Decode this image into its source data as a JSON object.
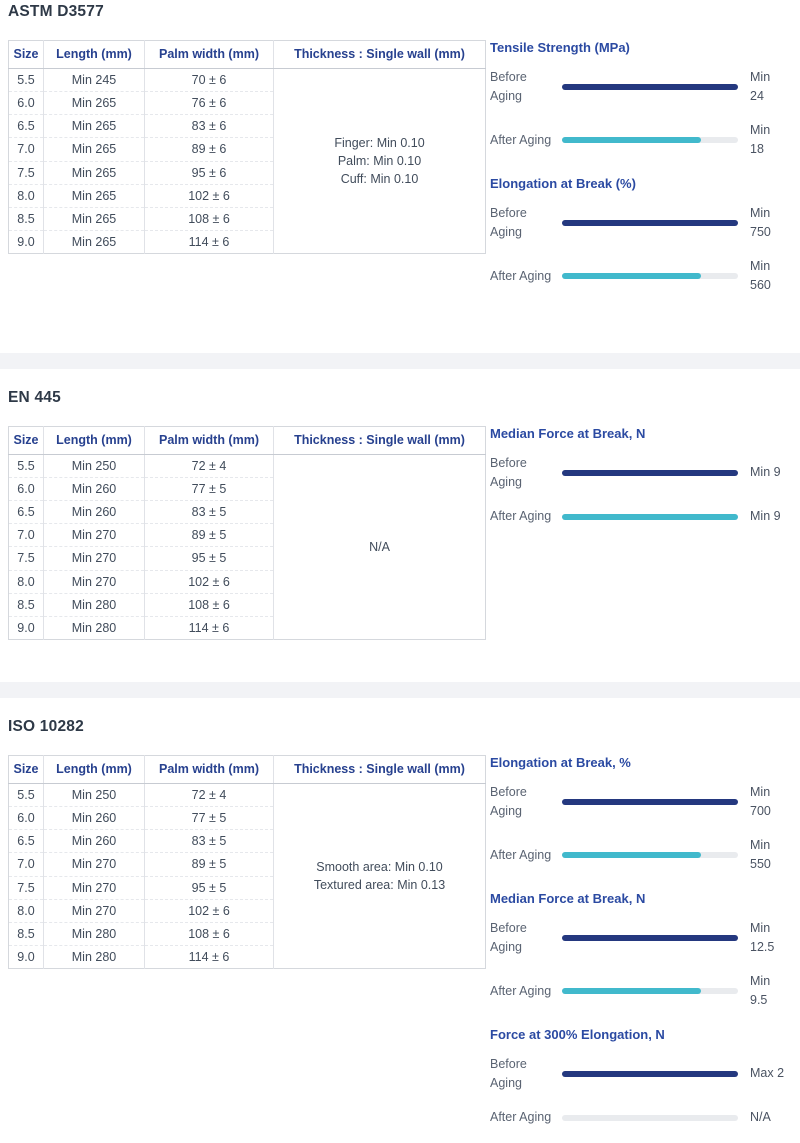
{
  "colors": {
    "navy": "#24387f",
    "teal": "#41b9cc",
    "none": "#e9ebee",
    "bar_track": "#e9ebee",
    "group_title_text": "#2b4aa2",
    "table_header_text": "#27418f",
    "section_title_text": "#2e3947",
    "divider": "#f2f3f6"
  },
  "sections": [
    {
      "id": "astm-d3577",
      "title": "ASTM D3577",
      "table": {
        "headers": [
          "Size",
          "Length (mm)",
          "Palm width (mm)",
          "Thickness : Single wall (mm)"
        ],
        "rows": [
          [
            "5.5",
            "Min 245",
            "70 ± 6"
          ],
          [
            "6.0",
            "Min 265",
            "76 ± 6"
          ],
          [
            "6.5",
            "Min 265",
            "83 ± 6"
          ],
          [
            "7.0",
            "Min 265",
            "89 ± 6"
          ],
          [
            "7.5",
            "Min 265",
            "95 ± 6"
          ],
          [
            "8.0",
            "Min 265",
            "102 ± 6"
          ],
          [
            "8.5",
            "Min 265",
            "108 ± 6"
          ],
          [
            "9.0",
            "Min 265",
            "114 ± 6"
          ]
        ],
        "thickness_lines": [
          "Finger: Min 0.10",
          "Palm: Min 0.10",
          "Cuff: Min 0.10"
        ]
      },
      "metrics": [
        {
          "title": "Tensile Strength (MPa)",
          "rows": [
            {
              "label": [
                "Before",
                "Aging"
              ],
              "bar_color": "navy",
              "fill_pct": 100,
              "value": [
                "Min",
                "24"
              ]
            },
            {
              "label": [
                "After Aging"
              ],
              "bar_color": "teal",
              "fill_pct": 79,
              "value": [
                "Min",
                "18"
              ]
            }
          ]
        },
        {
          "title": "Elongation at Break (%)",
          "rows": [
            {
              "label": [
                "Before",
                "Aging"
              ],
              "bar_color": "navy",
              "fill_pct": 100,
              "value": [
                "Min",
                "750"
              ]
            },
            {
              "label": [
                "After Aging"
              ],
              "bar_color": "teal",
              "fill_pct": 79,
              "value": [
                "Min",
                "560"
              ]
            }
          ]
        }
      ]
    },
    {
      "id": "en-445",
      "title": "EN 445",
      "table": {
        "headers": [
          "Size",
          "Length (mm)",
          "Palm width (mm)",
          "Thickness : Single wall (mm)"
        ],
        "rows": [
          [
            "5.5",
            "Min 250",
            "72 ± 4"
          ],
          [
            "6.0",
            "Min 260",
            "77 ± 5"
          ],
          [
            "6.5",
            "Min 260",
            "83 ± 5"
          ],
          [
            "7.0",
            "Min 270",
            "89 ± 5"
          ],
          [
            "7.5",
            "Min 270",
            "95 ± 5"
          ],
          [
            "8.0",
            "Min 270",
            "102 ± 6"
          ],
          [
            "8.5",
            "Min 280",
            "108 ± 6"
          ],
          [
            "9.0",
            "Min 280",
            "114 ± 6"
          ]
        ],
        "thickness_lines": [
          "N/A"
        ]
      },
      "metrics": [
        {
          "title": "Median Force at Break, N",
          "rows": [
            {
              "label": [
                "Before",
                "Aging"
              ],
              "bar_color": "navy",
              "fill_pct": 100,
              "value": [
                "Min 9"
              ]
            },
            {
              "label": [
                "After Aging"
              ],
              "bar_color": "teal",
              "fill_pct": 100,
              "value": [
                "Min 9"
              ]
            }
          ]
        }
      ]
    },
    {
      "id": "iso-10282",
      "title": "ISO 10282",
      "table": {
        "headers": [
          "Size",
          "Length (mm)",
          "Palm width (mm)",
          "Thickness : Single wall (mm)"
        ],
        "rows": [
          [
            "5.5",
            "Min 250",
            "72 ± 4"
          ],
          [
            "6.0",
            "Min 260",
            "77 ± 5"
          ],
          [
            "6.5",
            "Min 260",
            "83 ± 5"
          ],
          [
            "7.0",
            "Min 270",
            "89 ± 5"
          ],
          [
            "7.5",
            "Min 270",
            "95 ± 5"
          ],
          [
            "8.0",
            "Min 270",
            "102 ± 6"
          ],
          [
            "8.5",
            "Min 280",
            "108 ± 6"
          ],
          [
            "9.0",
            "Min 280",
            "114 ± 6"
          ]
        ],
        "thickness_lines": [
          "Smooth area: Min 0.10",
          "Textured area: Min 0.13"
        ]
      },
      "metrics": [
        {
          "title": "Elongation at Break, %",
          "rows": [
            {
              "label": [
                "Before",
                "Aging"
              ],
              "bar_color": "navy",
              "fill_pct": 100,
              "value": [
                "Min",
                "700"
              ]
            },
            {
              "label": [
                "After Aging"
              ],
              "bar_color": "teal",
              "fill_pct": 79,
              "value": [
                "Min",
                "550"
              ]
            }
          ]
        },
        {
          "title": "Median Force at Break, N",
          "rows": [
            {
              "label": [
                "Before",
                "Aging"
              ],
              "bar_color": "navy",
              "fill_pct": 100,
              "value": [
                "Min",
                "12.5"
              ]
            },
            {
              "label": [
                "After Aging"
              ],
              "bar_color": "teal",
              "fill_pct": 79,
              "value": [
                "Min",
                "9.5"
              ]
            }
          ]
        },
        {
          "title": "Force at 300% Elongation, N",
          "rows": [
            {
              "label": [
                "Before",
                "Aging"
              ],
              "bar_color": "navy",
              "fill_pct": 100,
              "value": [
                "Max 2"
              ]
            },
            {
              "label": [
                "After Aging"
              ],
              "bar_color": "none",
              "fill_pct": 0,
              "value": [
                "N/A"
              ]
            }
          ]
        }
      ]
    }
  ]
}
